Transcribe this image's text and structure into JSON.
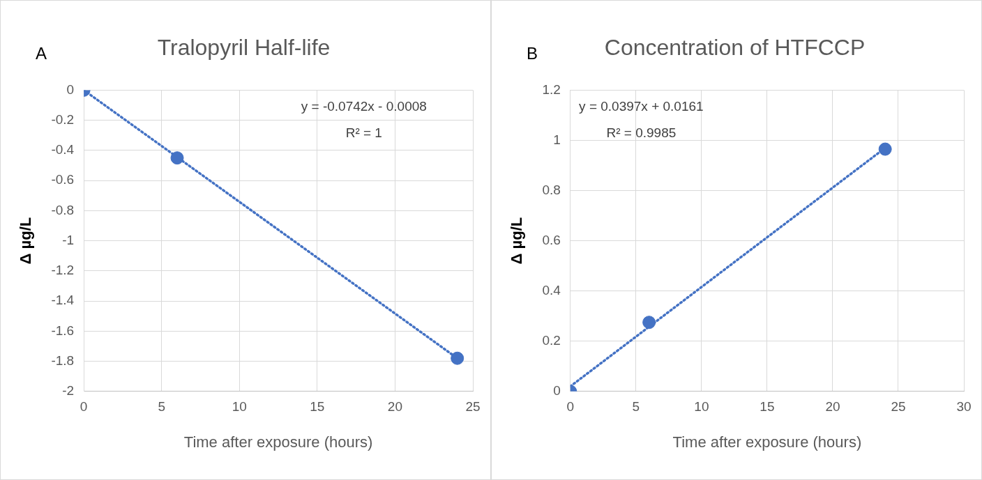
{
  "chart_data": [
    {
      "type": "scatter",
      "title": "Tralopyril Half-life",
      "xlabel": "Time after exposure (hours)",
      "ylabel": "Δ µg/L",
      "annotations": [
        "A",
        "y = -0.0742x - 0.0008",
        "R² = 1"
      ],
      "series": [
        {
          "type": "scatter",
          "color": "#4472c4",
          "marker": "circle",
          "x": [
            0,
            6,
            24
          ],
          "values": [
            0,
            -0.45,
            -1.78
          ]
        },
        {
          "type": "line",
          "color": "#4472c4",
          "line_style": "dotted",
          "marker": "none",
          "x": [
            0,
            24
          ],
          "values": [
            0,
            -1.78
          ]
        }
      ],
      "xlim": [
        0,
        25
      ],
      "xticks": [
        0,
        5,
        10,
        15,
        20,
        25
      ],
      "ylim": [
        -2,
        0
      ],
      "yticks": [
        -2,
        -1.8,
        -1.6,
        -1.4,
        -1.2,
        -1,
        -0.8,
        -0.6,
        -0.4,
        -0.2,
        0
      ],
      "grid": true
    },
    {
      "type": "scatter",
      "title": "Concentration of HTFCCP",
      "xlabel": "Time after exposure (hours)",
      "ylabel": "Δ µg/L",
      "annotations": [
        "B",
        "y = 0.0397x + 0.0161",
        "R² = 0.9985"
      ],
      "series": [
        {
          "type": "scatter",
          "color": "#4472c4",
          "marker": "circle",
          "x": [
            0,
            6,
            24
          ],
          "values": [
            0,
            0.275,
            0.965
          ]
        },
        {
          "type": "line",
          "color": "#4472c4",
          "line_style": "dotted",
          "marker": "none",
          "x": [
            0,
            24
          ],
          "values": [
            0.02,
            0.97
          ]
        }
      ],
      "xlim": [
        0,
        30
      ],
      "xticks": [
        0,
        5,
        10,
        15,
        20,
        25,
        30
      ],
      "ylim": [
        0,
        1.2
      ],
      "yticks": [
        0,
        0.2,
        0.4,
        0.6,
        0.8,
        1,
        1.2
      ],
      "grid": true
    }
  ]
}
